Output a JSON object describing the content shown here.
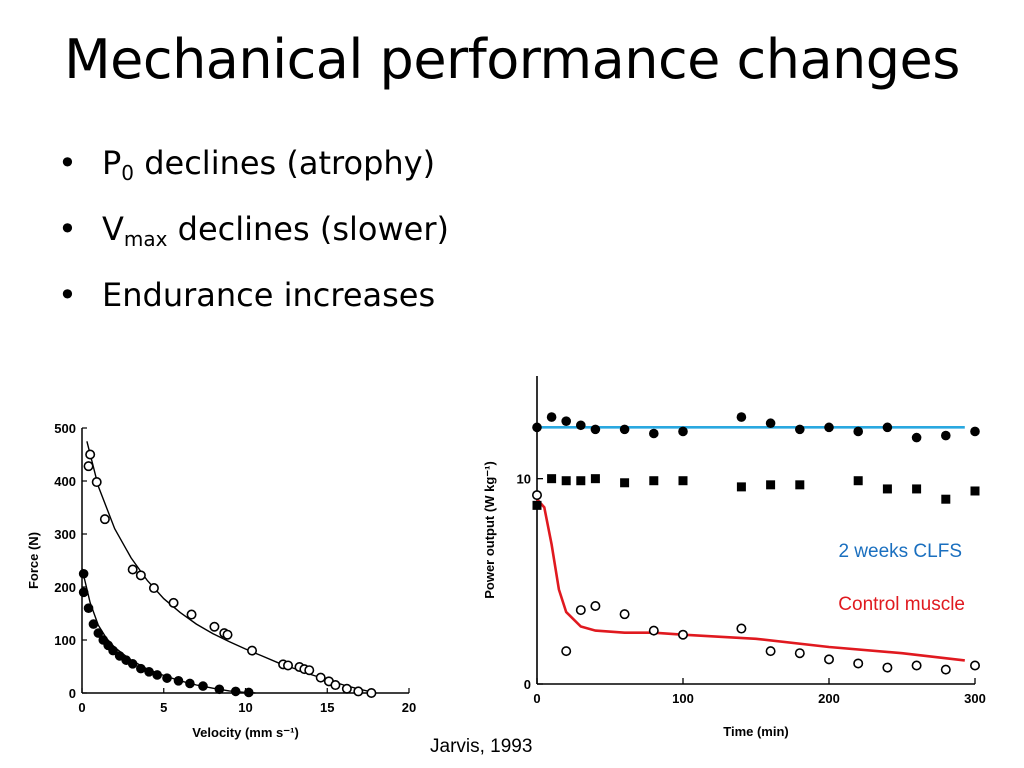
{
  "slide": {
    "title": "Mechanical performance changes",
    "bullets": [
      {
        "text": "P",
        "sub": "0",
        "rest": " declines (atrophy)"
      },
      {
        "text": "V",
        "sub": "max",
        "rest": " declines (slower)"
      },
      {
        "text": "Endurance increases",
        "sub": "",
        "rest": ""
      }
    ],
    "citation": "Jarvis, 1993"
  },
  "chart_data": [
    {
      "type": "scatter",
      "xlabel": "Velocity (mm s⁻¹)",
      "ylabel": "Force (N)",
      "xlim": [
        0,
        20
      ],
      "ylim": [
        0,
        500
      ],
      "xticks": [
        0,
        5,
        10,
        15,
        20
      ],
      "yticks": [
        0,
        100,
        200,
        300,
        400,
        500
      ],
      "series": [
        {
          "marker": "open-circle",
          "points": [
            [
              0.5,
              450
            ],
            [
              0.4,
              428
            ],
            [
              0.9,
              398
            ],
            [
              1.4,
              328
            ],
            [
              3.1,
              233
            ],
            [
              3.6,
              222
            ],
            [
              4.4,
              198
            ],
            [
              5.6,
              170
            ],
            [
              6.7,
              148
            ],
            [
              8.1,
              125
            ],
            [
              8.7,
              113
            ],
            [
              8.9,
              110
            ],
            [
              10.4,
              80
            ],
            [
              12.3,
              54
            ],
            [
              12.6,
              52
            ],
            [
              13.3,
              49
            ],
            [
              13.6,
              45
            ],
            [
              13.9,
              43
            ],
            [
              14.6,
              29
            ],
            [
              15.1,
              22
            ],
            [
              15.5,
              15
            ],
            [
              16.2,
              8
            ],
            [
              16.9,
              3
            ],
            [
              17.7,
              0
            ]
          ],
          "fit": [
            [
              0.3,
              475
            ],
            [
              1,
              390
            ],
            [
              2,
              310
            ],
            [
              3,
              255
            ],
            [
              4,
              212
            ],
            [
              5,
              178
            ],
            [
              6,
              152
            ],
            [
              7,
              130
            ],
            [
              8,
              112
            ],
            [
              9,
              97
            ],
            [
              10,
              83
            ],
            [
              11,
              70
            ],
            [
              12,
              57
            ],
            [
              13,
              46
            ],
            [
              14,
              35
            ],
            [
              15,
              25
            ],
            [
              16,
              15
            ],
            [
              17,
              7
            ],
            [
              18,
              0
            ]
          ]
        },
        {
          "marker": "filled-circle",
          "points": [
            [
              0.1,
              225
            ],
            [
              0.1,
              190
            ],
            [
              0.4,
              160
            ],
            [
              0.7,
              130
            ],
            [
              1,
              113
            ],
            [
              1.3,
              100
            ],
            [
              1.6,
              90
            ],
            [
              1.9,
              80
            ],
            [
              2.3,
              70
            ],
            [
              2.7,
              62
            ],
            [
              3.1,
              55
            ],
            [
              3.6,
              46
            ],
            [
              4.1,
              40
            ],
            [
              4.6,
              34
            ],
            [
              5.2,
              28
            ],
            [
              5.9,
              23
            ],
            [
              6.6,
              18
            ],
            [
              7.4,
              13
            ],
            [
              8.4,
              7
            ],
            [
              9.4,
              3
            ],
            [
              10.2,
              1
            ]
          ],
          "fit": [
            [
              0,
              235
            ],
            [
              0.5,
              170
            ],
            [
              1,
              128
            ],
            [
              1.5,
              103
            ],
            [
              2,
              86
            ],
            [
              3,
              62
            ],
            [
              4,
              45
            ],
            [
              5,
              33
            ],
            [
              6,
              23
            ],
            [
              7,
              15
            ],
            [
              8,
              9
            ],
            [
              9,
              4
            ],
            [
              10,
              1
            ],
            [
              10.6,
              0
            ]
          ]
        }
      ]
    },
    {
      "type": "scatter",
      "xlabel": "Time (min)",
      "ylabel": "Power output (W kg⁻¹)",
      "xlim": [
        0,
        300
      ],
      "ylim": [
        0,
        15
      ],
      "xticks": [
        0,
        100,
        200,
        300
      ],
      "yticks": [
        0,
        10
      ],
      "annotations": [
        {
          "text": "2 weeks CLFS",
          "color": "#1a6fbf"
        },
        {
          "text": "Control muscle",
          "color": "#e0191f"
        }
      ],
      "series": [
        {
          "marker": "filled-circle",
          "points": [
            [
              0,
              12.5
            ],
            [
              10,
              13.0
            ],
            [
              20,
              12.8
            ],
            [
              30,
              12.6
            ],
            [
              40,
              12.4
            ],
            [
              60,
              12.4
            ],
            [
              80,
              12.2
            ],
            [
              100,
              12.3
            ],
            [
              140,
              13.0
            ],
            [
              160,
              12.7
            ],
            [
              180,
              12.4
            ],
            [
              200,
              12.5
            ],
            [
              220,
              12.3
            ],
            [
              240,
              12.5
            ],
            [
              260,
              12.0
            ],
            [
              280,
              12.1
            ],
            [
              300,
              12.3
            ]
          ],
          "trend_color": "#29a8e0",
          "trend": [
            [
              0,
              12.5
            ],
            [
              293,
              12.5
            ]
          ]
        },
        {
          "marker": "filled-square",
          "points": [
            [
              0,
              8.7
            ],
            [
              10,
              10.0
            ],
            [
              20,
              9.9
            ],
            [
              30,
              9.9
            ],
            [
              40,
              10.0
            ],
            [
              60,
              9.8
            ],
            [
              80,
              9.9
            ],
            [
              100,
              9.9
            ],
            [
              140,
              9.6
            ],
            [
              160,
              9.7
            ],
            [
              180,
              9.7
            ],
            [
              220,
              9.9
            ],
            [
              240,
              9.5
            ],
            [
              260,
              9.5
            ],
            [
              280,
              9.0
            ],
            [
              300,
              9.4
            ]
          ]
        },
        {
          "marker": "open-circle",
          "points": [
            [
              0,
              9.2
            ],
            [
              20,
              1.6
            ],
            [
              30,
              3.6
            ],
            [
              40,
              3.8
            ],
            [
              60,
              3.4
            ],
            [
              80,
              2.6
            ],
            [
              100,
              2.4
            ],
            [
              140,
              2.7
            ],
            [
              160,
              1.6
            ],
            [
              180,
              1.5
            ],
            [
              200,
              1.2
            ],
            [
              220,
              1.0
            ],
            [
              240,
              0.8
            ],
            [
              260,
              0.9
            ],
            [
              280,
              0.7
            ],
            [
              300,
              0.9
            ]
          ],
          "trend_color": "#e0191f",
          "trend": [
            [
              0,
              9.0
            ],
            [
              5,
              8.6
            ],
            [
              10,
              6.8
            ],
            [
              15,
              4.6
            ],
            [
              20,
              3.5
            ],
            [
              30,
              2.8
            ],
            [
              40,
              2.6
            ],
            [
              60,
              2.5
            ],
            [
              80,
              2.5
            ],
            [
              100,
              2.4
            ],
            [
              150,
              2.2
            ],
            [
              200,
              1.8
            ],
            [
              250,
              1.5
            ],
            [
              293,
              1.15
            ]
          ]
        }
      ]
    }
  ]
}
